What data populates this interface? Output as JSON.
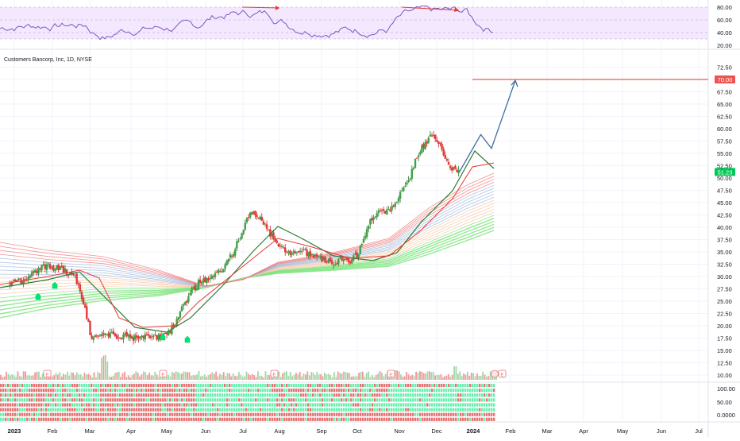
{
  "symbol_title": "Customers Bancorp, Inc, 1D, NYSE",
  "price_axis": {
    "ticks": [
      "72.50",
      "70.00",
      "67.50",
      "65.00",
      "62.50",
      "60.00",
      "57.50",
      "55.00",
      "52.50",
      "50.00",
      "47.50",
      "45.00",
      "42.50",
      "40.00",
      "37.50",
      "35.00",
      "32.50",
      "30.00",
      "27.50",
      "25.00",
      "22.50",
      "20.00",
      "17.50",
      "15.00",
      "12.50",
      "10.00"
    ],
    "target_label": "70.00",
    "last_label": "51.23"
  },
  "rsi_axis": {
    "ticks": [
      "80.00",
      "60.00",
      "40.00",
      "20.00"
    ]
  },
  "breadth_axis": {
    "ticks": [
      "100.00",
      "50.00",
      "0.0000"
    ]
  },
  "time_axis": {
    "labels": [
      "2023",
      "Feb",
      "Mar",
      "Apr",
      "May",
      "Jun",
      "Jul",
      "Aug",
      "Sep",
      "Oct",
      "Nov",
      "Dec",
      "2024",
      "Feb",
      "Mar",
      "Apr",
      "May",
      "Jun",
      "Jul"
    ]
  },
  "earnings_marker": "E",
  "dividend_marker": "D",
  "split_marker": "S",
  "colors": {
    "up": "#26a69a",
    "down": "#ef5350",
    "green_line": "#2e7d32",
    "red_line": "#e53935",
    "target_line": "#ef5350",
    "projection": "#3d6c9e",
    "rsi_band": "#f3e8fd",
    "rsi_line": "#7e57c2",
    "last_price_bg": "#00c853"
  },
  "chart_data": {
    "type": "candlestick",
    "title": "Customers Bancorp, Inc, 1D, NYSE",
    "ylim": [
      9,
      74
    ],
    "x_range": [
      "2023-01",
      "2024-07"
    ],
    "target_price": 70.0,
    "last_price": 51.23,
    "weekly_close": [
      {
        "week": "2023-01-06",
        "close": 28.5
      },
      {
        "week": "2023-01-13",
        "close": 29.2
      },
      {
        "week": "2023-01-20",
        "close": 29.0
      },
      {
        "week": "2023-01-27",
        "close": 30.6
      },
      {
        "week": "2023-02-03",
        "close": 32.4
      },
      {
        "week": "2023-02-10",
        "close": 32.0
      },
      {
        "week": "2023-02-17",
        "close": 31.5
      },
      {
        "week": "2023-02-24",
        "close": 31.0
      },
      {
        "week": "2023-03-03",
        "close": 30.2
      },
      {
        "week": "2023-03-10",
        "close": 25.0
      },
      {
        "week": "2023-03-17",
        "close": 17.0
      },
      {
        "week": "2023-03-24",
        "close": 18.2
      },
      {
        "week": "2023-03-31",
        "close": 18.5
      },
      {
        "week": "2023-04-07",
        "close": 18.0
      },
      {
        "week": "2023-04-14",
        "close": 17.8
      },
      {
        "week": "2023-04-21",
        "close": 17.5
      },
      {
        "week": "2023-04-28",
        "close": 17.6
      },
      {
        "week": "2023-05-05",
        "close": 18.0
      },
      {
        "week": "2023-05-12",
        "close": 17.8
      },
      {
        "week": "2023-05-19",
        "close": 18.2
      },
      {
        "week": "2023-05-26",
        "close": 20.5
      },
      {
        "week": "2023-06-02",
        "close": 24.0
      },
      {
        "week": "2023-06-09",
        "close": 27.0
      },
      {
        "week": "2023-06-16",
        "close": 29.0
      },
      {
        "week": "2023-06-23",
        "close": 29.5
      },
      {
        "week": "2023-06-30",
        "close": 30.8
      },
      {
        "week": "2023-07-07",
        "close": 32.0
      },
      {
        "week": "2023-07-14",
        "close": 35.0
      },
      {
        "week": "2023-07-21",
        "close": 39.0
      },
      {
        "week": "2023-07-28",
        "close": 43.5
      },
      {
        "week": "2023-08-04",
        "close": 42.0
      },
      {
        "week": "2023-08-11",
        "close": 40.0
      },
      {
        "week": "2023-08-18",
        "close": 37.0
      },
      {
        "week": "2023-08-25",
        "close": 35.5
      },
      {
        "week": "2023-09-01",
        "close": 35.0
      },
      {
        "week": "2023-09-08",
        "close": 35.2
      },
      {
        "week": "2023-09-15",
        "close": 34.8
      },
      {
        "week": "2023-09-22",
        "close": 34.0
      },
      {
        "week": "2023-09-29",
        "close": 33.5
      },
      {
        "week": "2023-10-06",
        "close": 32.8
      },
      {
        "week": "2023-10-13",
        "close": 33.8
      },
      {
        "week": "2023-10-20",
        "close": 33.2
      },
      {
        "week": "2023-10-27",
        "close": 34.5
      },
      {
        "week": "2023-11-03",
        "close": 40.0
      },
      {
        "week": "2023-11-10",
        "close": 42.5
      },
      {
        "week": "2023-11-17",
        "close": 43.2
      },
      {
        "week": "2023-11-24",
        "close": 44.0
      },
      {
        "week": "2023-12-01",
        "close": 47.0
      },
      {
        "week": "2023-12-08",
        "close": 49.5
      },
      {
        "week": "2023-12-15",
        "close": 54.5
      },
      {
        "week": "2023-12-22",
        "close": 57.0
      },
      {
        "week": "2023-12-29",
        "close": 59.0
      },
      {
        "week": "2024-01-05",
        "close": 56.0
      },
      {
        "week": "2024-01-12",
        "close": 52.0
      },
      {
        "week": "2024-01-19",
        "close": 51.23
      }
    ],
    "projection_path": [
      {
        "date": "2024-01-19",
        "price": 51.2
      },
      {
        "date": "2024-02-06",
        "price": 58.8
      },
      {
        "date": "2024-02-15",
        "price": 56.0
      },
      {
        "date": "2024-03-06",
        "price": 69.8
      }
    ],
    "rsi": {
      "ticks": [
        80,
        60,
        40,
        20
      ],
      "band": [
        30,
        75
      ],
      "last": 45
    }
  }
}
